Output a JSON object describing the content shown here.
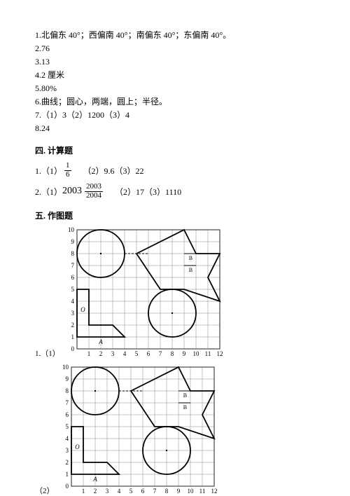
{
  "answers": {
    "a1": "1.北偏东 40°；西偏南 40°；南偏东 40°；东偏南 40°。",
    "a2": "2.76",
    "a3": "3.13",
    "a4": "4.2 厘米",
    "a5": "5.80%",
    "a6": "6.曲线；圆心，两端，圆上；半径。",
    "a7": "7.（1）3（2）1200（3）4",
    "a8": "8.24"
  },
  "section4": {
    "title": "四. 计算题",
    "row1": {
      "p1_label": "1.（1）",
      "p1_frac_num": "1",
      "p1_frac_den": "6",
      "p2": "（2）9.6（3）22"
    },
    "row2": {
      "p1_label": "2.（1）",
      "p1_whole": "2003",
      "p1_frac_num": "2003",
      "p1_frac_den": "2004",
      "p2": "（2）17（3）1110"
    }
  },
  "section5": {
    "title": "五. 作图题",
    "fig1_label": "1.（1）",
    "fig2_label": "（2）"
  },
  "grid": {
    "cell": 17,
    "cols": 12,
    "rows": 10,
    "border_color": "#555",
    "grid_color": "#888",
    "axis_labels_x": [
      "1",
      "2",
      "3",
      "4",
      "5",
      "6",
      "7",
      "8",
      "9",
      "10",
      "11",
      "12"
    ],
    "axis_labels_y": [
      "10",
      "9",
      "8",
      "7",
      "6",
      "5",
      "4",
      "3",
      "2",
      "1",
      "0"
    ],
    "shape_labels": {
      "A": "A",
      "B1": "B",
      "B2": "B",
      "O": "O"
    }
  }
}
